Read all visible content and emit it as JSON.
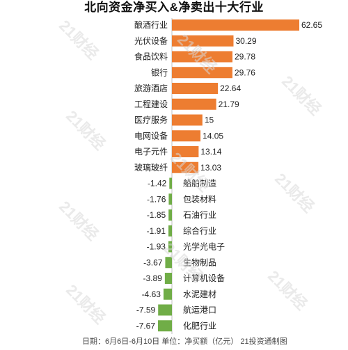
{
  "chart_data": {
    "type": "bar",
    "orientation": "horizontal",
    "title": "北向资金净买入&净卖出十大行业",
    "categories": [
      "酿酒行业",
      "光伏设备",
      "食品饮料",
      "银行",
      "旅游酒店",
      "工程建设",
      "医疗服务",
      "电网设备",
      "电子元件",
      "玻璃玻纤",
      "船舶制造",
      "包装材料",
      "石油行业",
      "综合行业",
      "光学光电子",
      "生物制品",
      "计算机设备",
      "水泥建材",
      "航运港口",
      "化肥行业"
    ],
    "values": [
      62.65,
      30.29,
      29.78,
      29.76,
      22.64,
      21.79,
      15,
      14.05,
      13.14,
      13.03,
      -1.42,
      -1.76,
      -1.85,
      -1.91,
      -1.93,
      -3.67,
      -3.89,
      -4.63,
      -7.59,
      -7.67
    ],
    "value_labels": [
      "62.65",
      "30.29",
      "29.78",
      "29.76",
      "22.64",
      "21.79",
      "15",
      "14.05",
      "13.14",
      "13.03",
      "-1.42",
      "-1.76",
      "-1.85",
      "-1.91",
      "-1.93",
      "-3.67",
      "-3.89",
      "-4.63",
      "-7.59",
      "-7.67"
    ],
    "colors": {
      "positive": "#ed7d31",
      "negative": "#70ad47"
    },
    "grid": false,
    "legend": "none"
  },
  "footer": "日期：6月6日-6月10日  单位：净买额（亿元）  21投资通制图",
  "watermark": "21财经"
}
